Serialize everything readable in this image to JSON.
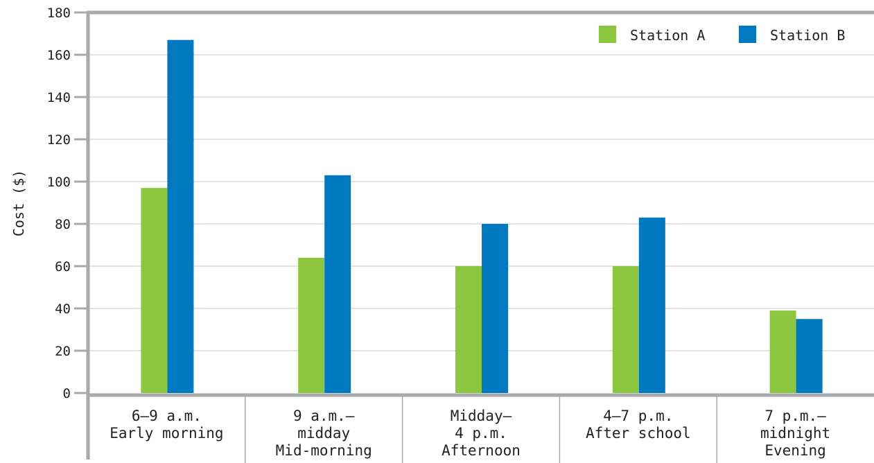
{
  "chart_data": {
    "type": "bar",
    "title": "",
    "ylabel": "Cost ($)",
    "xlabel": "",
    "ylim": [
      0,
      180
    ],
    "yticks": [
      0,
      20,
      40,
      60,
      80,
      100,
      120,
      140,
      160,
      180
    ],
    "grid": true,
    "legend_position": "top-right",
    "categories": [
      [
        "6–9 a.m.",
        "Early morning"
      ],
      [
        "9 a.m.–",
        "midday",
        "Mid-morning"
      ],
      [
        "Midday–",
        "4 p.m.",
        "Afternoon"
      ],
      [
        "4–7 p.m.",
        "After school"
      ],
      [
        "7 p.m.–",
        "midnight",
        "Evening"
      ]
    ],
    "series": [
      {
        "name": "Station A",
        "color": "#8dc63f",
        "values": [
          97,
          64,
          60,
          60,
          39
        ]
      },
      {
        "name": "Station B",
        "color": "#0079c1",
        "values": [
          167,
          103,
          80,
          83,
          35
        ]
      }
    ],
    "colors": {
      "axis": "#a7a9ac",
      "grid": "#d9d9db"
    }
  }
}
